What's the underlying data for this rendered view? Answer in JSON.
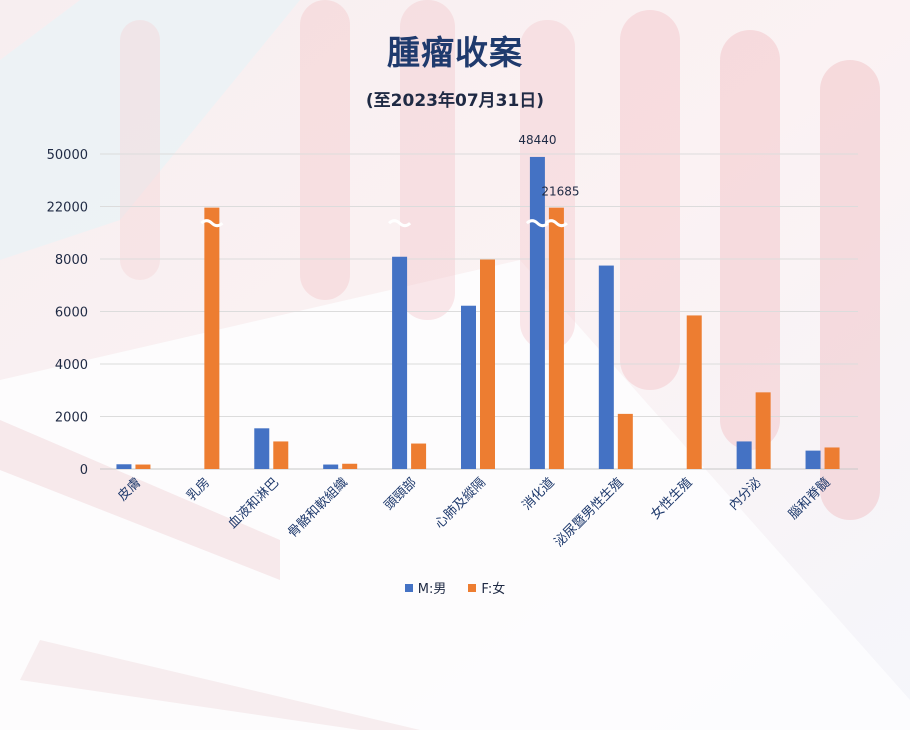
{
  "colors": {
    "male": "#4472c4",
    "female": "#ed7d31",
    "title": "#1f3a6d"
  },
  "chart_data": {
    "type": "bar",
    "title": "腫瘤收案",
    "subtitle": "(至2023年07月31日)",
    "categories": [
      "皮膚",
      "乳房",
      "血液和淋巴",
      "骨骼和軟組織",
      "頭頸部",
      "心肺及縱隔",
      "消化道",
      "泌尿暨男性生殖",
      "女性生殖",
      "內分泌",
      "腦和脊髓"
    ],
    "series": [
      {
        "name": "M:男",
        "values": [
          180,
          0,
          1550,
          170,
          8600,
          6220,
          48440,
          7750,
          0,
          1050,
          700
        ]
      },
      {
        "name": "F:女",
        "values": [
          170,
          21700,
          1050,
          200,
          970,
          7980,
          21685,
          2100,
          5850,
          2920,
          820
        ]
      }
    ],
    "yticks": [
      0,
      2000,
      4000,
      6000,
      8000,
      22000,
      50000
    ],
    "broken_axis": true,
    "data_labels": [
      "48440",
      "21685"
    ],
    "grid": true,
    "legend_position": "bottom"
  }
}
